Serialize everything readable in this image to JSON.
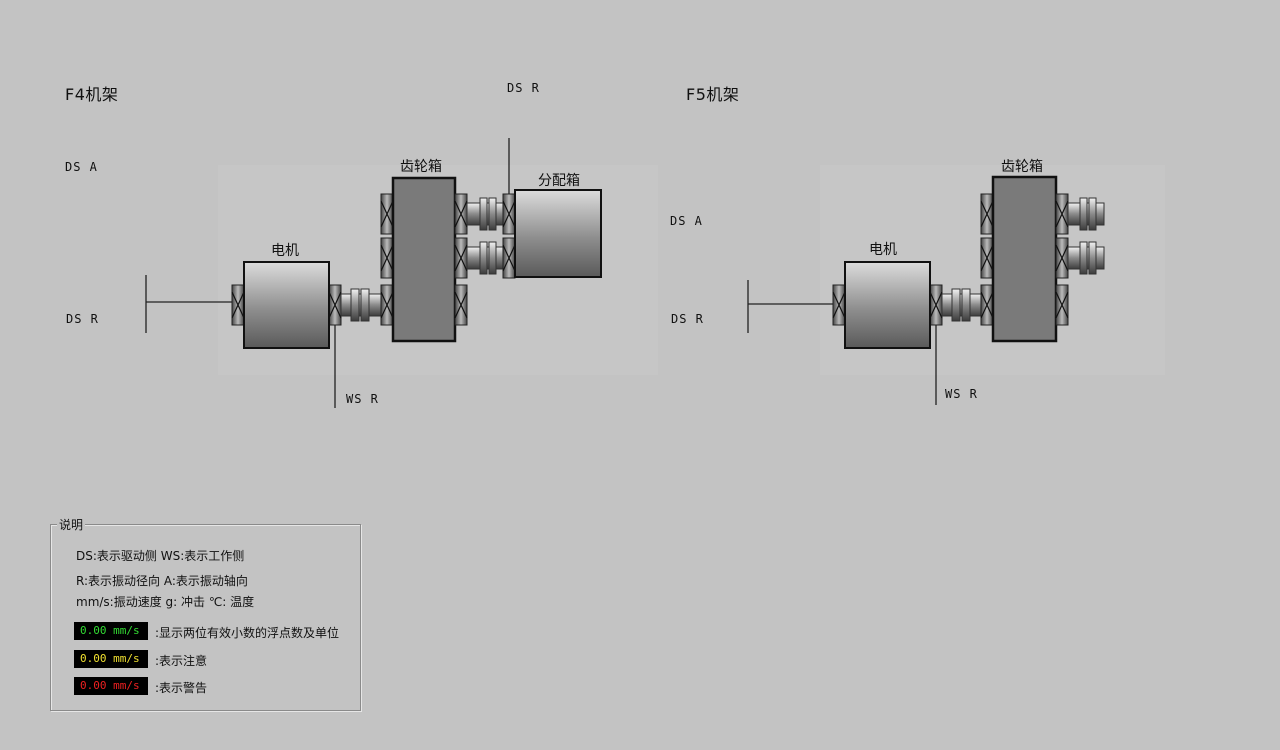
{
  "f4": {
    "title": "F4机架",
    "motor": "电机",
    "gearbox": "齿轮箱",
    "distbox": "分配箱",
    "ds_a": "DS A",
    "ds_r_left": "DS R",
    "ds_r_top": "DS R",
    "ws_r": "WS R"
  },
  "f5": {
    "title": "F5机架",
    "motor": "电机",
    "gearbox": "齿轮箱",
    "ds_a": "DS A",
    "ds_r": "DS R",
    "ws_r": "WS R"
  },
  "legend": {
    "title": "说明",
    "line1_codes": "DS:",
    "line1": "DS:表示驱动侧 WS:表示工作侧",
    "line2": "R:表示振动径向 A:表示振动轴向",
    "line3": "mm/s:振动速度 g: 冲击 ℃: 温度",
    "samples": [
      {
        "value": "0.00 mm/s",
        "color": "#33dd33",
        "desc": ":显示两位有效小数的浮点数及单位"
      },
      {
        "value": "0.00 mm/s",
        "color": "#f0e030",
        "desc": ":表示注意"
      },
      {
        "value": "0.00 mm/s",
        "color": "#ee2020",
        "desc": ":表示警告"
      }
    ]
  }
}
